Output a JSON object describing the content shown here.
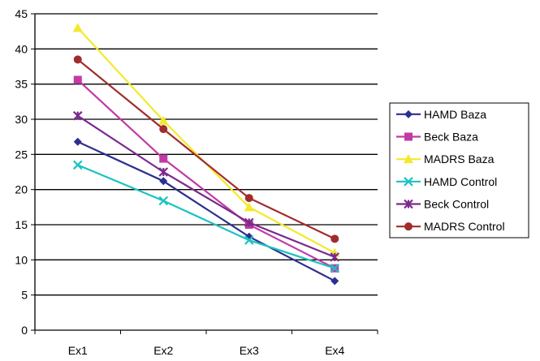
{
  "chart_data": {
    "type": "line",
    "categories": [
      "Ex1",
      "Ex2",
      "Ex3",
      "Ex4"
    ],
    "ylim": [
      0,
      45
    ],
    "yticks": [
      0,
      5,
      10,
      15,
      20,
      25,
      30,
      35,
      40,
      45
    ],
    "grid": "horizontal",
    "legend_position": "right",
    "series": [
      {
        "name": "HAMD Baza",
        "values": [
          26.8,
          21.2,
          13.3,
          7.0
        ],
        "color": "#2b2f8f",
        "marker": "diamond"
      },
      {
        "name": "Beck Baza",
        "values": [
          35.6,
          24.4,
          15.0,
          8.8
        ],
        "color": "#c23aa5",
        "marker": "square"
      },
      {
        "name": "MADRS Baza",
        "values": [
          43.0,
          29.8,
          17.5,
          11.0
        ],
        "color": "#f2ea2a",
        "marker": "triangle"
      },
      {
        "name": "HAMD Control",
        "values": [
          23.5,
          18.4,
          12.8,
          8.8
        ],
        "color": "#1cc2c2",
        "marker": "x"
      },
      {
        "name": "Beck Control",
        "values": [
          30.5,
          22.5,
          15.3,
          10.4
        ],
        "color": "#7b2a8c",
        "marker": "star"
      },
      {
        "name": "MADRS Control",
        "values": [
          38.5,
          28.6,
          18.8,
          13.0
        ],
        "color": "#a02c2c",
        "marker": "circle"
      }
    ]
  }
}
